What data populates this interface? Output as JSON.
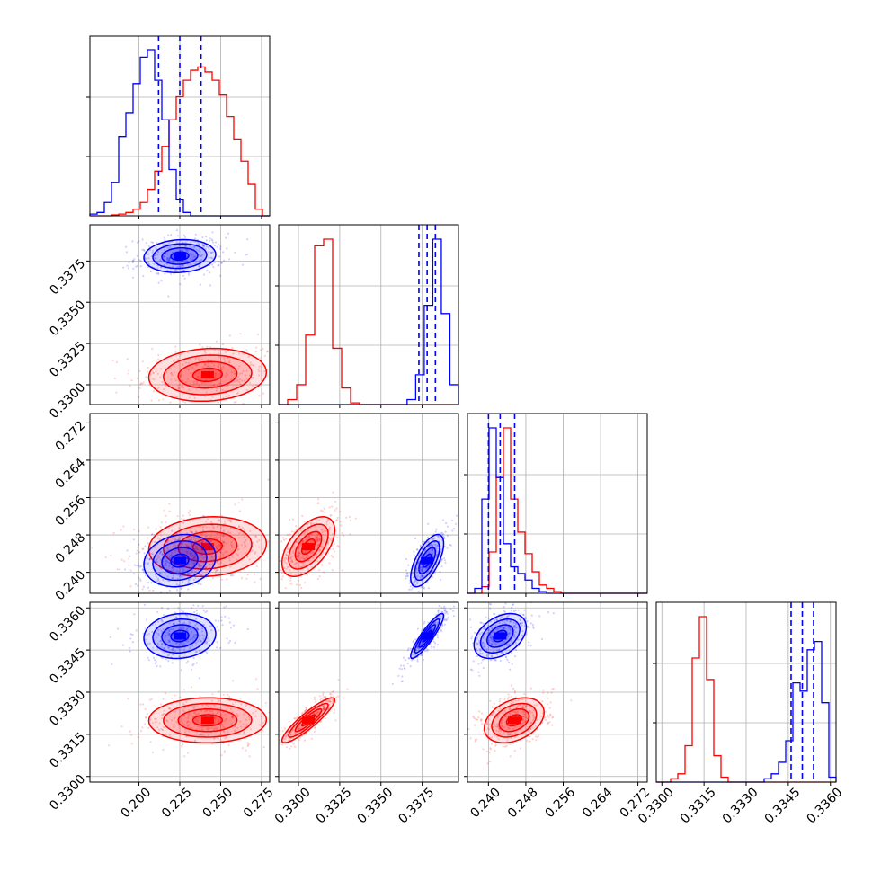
{
  "chart_data": {
    "type": "corner",
    "parameters": 4,
    "colors": {
      "red": "#ff0000",
      "blue": "#0000ff",
      "grid": "#b0b0b0"
    },
    "grid": true,
    "axis_ranges": [
      [
        0.17,
        0.28
      ],
      [
        0.3288,
        0.3397
      ],
      [
        0.2355,
        0.274
      ],
      [
        0.3298,
        0.3362
      ]
    ],
    "tick_labels": {
      "p1": [
        "0.200",
        "0.225",
        "0.250",
        "0.275"
      ],
      "p2": [
        "0.3300",
        "0.3325",
        "0.3350",
        "0.3375"
      ],
      "p3": [
        "0.240",
        "0.248",
        "0.256",
        "0.264",
        "0.272"
      ],
      "p4": [
        "0.3300",
        "0.3315",
        "0.3330",
        "0.3345",
        "0.3360"
      ]
    },
    "tick_values": {
      "p1": [
        0.2,
        0.225,
        0.25,
        0.275
      ],
      "p2": [
        0.33,
        0.3325,
        0.335,
        0.3375
      ],
      "p3": [
        0.24,
        0.248,
        0.256,
        0.264,
        0.272
      ],
      "p4": [
        0.33,
        0.3315,
        0.333,
        0.3345,
        0.336
      ]
    },
    "series": [
      {
        "color": "red",
        "means": [
          0.242,
          0.3306,
          0.2455,
          0.332
        ],
        "sds": [
          0.018,
          0.0008,
          0.0032,
          0.0004
        ],
        "corr": {
          "1-0": 0.1,
          "2-0": 0.1,
          "2-1": 0.55,
          "3-0": 0.02,
          "3-1": 0.9,
          "3-2": 0.35
        },
        "hist_bins": [
          {
            "param": 0,
            "edges": [
              0.17,
              0.28
            ],
            "counts": [
              0,
              0,
              0,
              0.5,
              1,
              2,
              4,
              8,
              16,
              27,
              42,
              58,
              72,
              82,
              88,
              90,
              87,
              82,
              73,
              60,
              46,
              33,
              19,
              4,
              0
            ]
          },
          {
            "param": 1,
            "edges": [
              0.3288,
              0.3397
            ],
            "counts": [
              0,
              3,
              12,
              42,
              96,
              100,
              34,
              10,
              1,
              0,
              0,
              0,
              0,
              0,
              0,
              0,
              0,
              0,
              0,
              0
            ]
          },
          {
            "param": 2,
            "edges": [
              0.2355,
              0.274
            ],
            "counts": [
              0,
              0,
              4,
              25,
              70,
              100,
              57,
              37,
              24,
              13,
              5,
              3,
              1,
              0,
              0,
              0,
              0,
              0,
              0,
              0,
              0,
              0,
              0,
              0,
              0
            ]
          },
          {
            "param": 3,
            "edges": [
              0.3298,
              0.3362
            ],
            "counts": [
              0,
              0,
              2,
              5,
              22,
              75,
              100,
              62,
              16,
              3,
              0,
              0,
              0,
              0,
              0,
              0,
              0,
              0,
              0,
              0,
              0,
              0,
              0,
              0,
              0
            ]
          }
        ]
      },
      {
        "color": "blue",
        "means": [
          0.225,
          0.3378,
          0.2425,
          0.335
        ],
        "sds": [
          0.011,
          0.0005,
          0.0028,
          0.0004
        ],
        "corr": {
          "1-0": 0.1,
          "2-0": 0.15,
          "2-1": 0.65,
          "3-0": 0.1,
          "3-1": 0.9,
          "3-2": 0.4
        },
        "quantiles": [
          [
            0.212,
            0.225,
            0.238
          ],
          [
            0.3373,
            0.3378,
            0.3383
          ],
          [
            0.24,
            0.2425,
            0.2456
          ],
          [
            0.3346,
            0.335,
            0.3354
          ]
        ],
        "hist_bins": [
          {
            "param": 0,
            "edges": [
              0.17,
              0.28
            ],
            "counts": [
              1,
              2,
              8,
              20,
              48,
              62,
              80,
              96,
              100,
              82,
              58,
              28,
              10,
              2,
              0,
              0,
              0,
              0,
              0,
              0,
              0,
              0,
              0,
              0,
              0
            ]
          },
          {
            "param": 1,
            "edges": [
              0.3288,
              0.3397
            ],
            "counts": [
              0,
              0,
              0,
              0,
              0,
              0,
              0,
              0,
              0,
              0,
              0,
              0,
              0,
              0,
              0,
              3,
              18,
              60,
              100,
              55,
              12
            ]
          },
          {
            "param": 2,
            "edges": [
              0.2355,
              0.274
            ],
            "counts": [
              0,
              3,
              57,
              100,
              70,
              30,
              16,
              12,
              8,
              3,
              1,
              0,
              0,
              0,
              0,
              0,
              0,
              0,
              0,
              0,
              0,
              0,
              0,
              0,
              0
            ]
          },
          {
            "param": 3,
            "edges": [
              0.3298,
              0.3362
            ],
            "counts": [
              0,
              0,
              0,
              0,
              0,
              0,
              0,
              0,
              0,
              0,
              0,
              0,
              0,
              0,
              0,
              2,
              5,
              12,
              25,
              60,
              55,
              80,
              85,
              48,
              3
            ]
          }
        ]
      }
    ]
  }
}
